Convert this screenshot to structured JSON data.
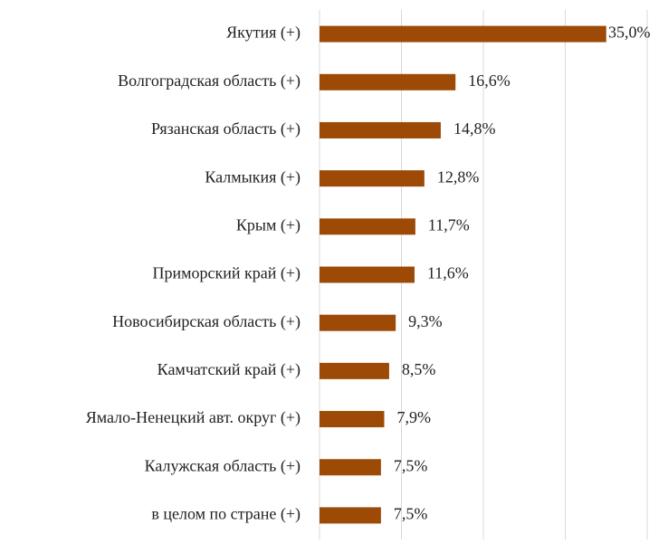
{
  "chart_data": {
    "type": "hbar",
    "categories": [
      "Якутия (+)",
      "Волгоградская область (+)",
      "Рязанская область (+)",
      "Калмыкия (+)",
      "Крым (+)",
      "Приморский край (+)",
      "Новосибирская область (+)",
      "Камчатский край (+)",
      "Ямало-Ненецкий авт. округ (+)",
      "Калужская область (+)",
      "в целом по стране (+)"
    ],
    "values": [
      35.0,
      16.6,
      14.8,
      12.8,
      11.7,
      11.6,
      9.3,
      8.5,
      7.9,
      7.5,
      7.5
    ],
    "value_labels": [
      "35,0%",
      "16,6%",
      "14,8%",
      "12,8%",
      "11,7%",
      "11,6%",
      "9,3%",
      "8,5%",
      "7,9%",
      "7,5%",
      "7,5%"
    ],
    "color": "#9c4a06",
    "xlim": [
      0,
      40
    ],
    "xticks": [
      0,
      10,
      20,
      30,
      40
    ],
    "grid": true
  }
}
